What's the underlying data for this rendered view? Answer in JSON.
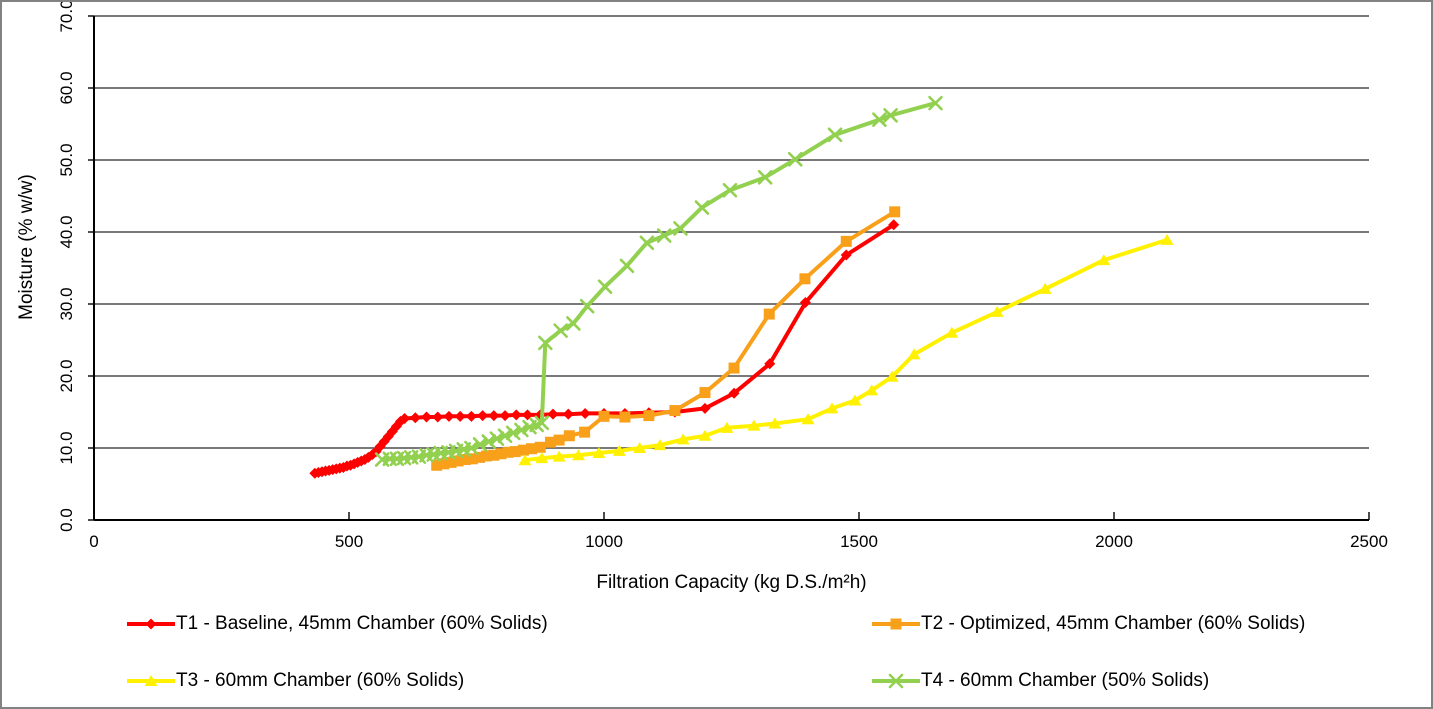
{
  "chart_data": {
    "type": "line",
    "title": "",
    "xlabel": "Filtration Capacity (kg D.S./m²h)",
    "ylabel": "Moisture (% w/w)",
    "xlim": [
      0,
      2500
    ],
    "ylim": [
      0,
      70
    ],
    "x_ticks": [
      "0",
      "500",
      "1000",
      "1500",
      "2000",
      "2500"
    ],
    "y_ticks": [
      "0.0",
      "10.0",
      "20.0",
      "30.0",
      "40.0",
      "50.0",
      "60.0",
      "70.0"
    ],
    "grid": "horizontal",
    "gridline_color": "#4d4d4d",
    "axis_color": "#000000",
    "text_color": "#000000",
    "legend_position": "bottom-two-columns",
    "series": [
      {
        "name": "T1 - Baseline, 45mm Chamber (60% Solids)",
        "color": "#FF0000",
        "marker": "diamond",
        "points": [
          [
            433,
            6.5
          ],
          [
            440,
            6.6
          ],
          [
            447,
            6.7
          ],
          [
            454,
            6.8
          ],
          [
            461,
            6.9
          ],
          [
            468,
            7.0
          ],
          [
            475,
            7.1
          ],
          [
            482,
            7.2
          ],
          [
            489,
            7.3
          ],
          [
            496,
            7.5
          ],
          [
            503,
            7.6
          ],
          [
            510,
            7.8
          ],
          [
            517,
            8.0
          ],
          [
            524,
            8.2
          ],
          [
            531,
            8.4
          ],
          [
            538,
            8.7
          ],
          [
            546,
            9.1
          ],
          [
            553,
            9.5
          ],
          [
            561,
            10.2
          ],
          [
            569,
            10.9
          ],
          [
            577,
            11.6
          ],
          [
            585,
            12.3
          ],
          [
            593,
            13.0
          ],
          [
            601,
            13.7
          ],
          [
            609,
            14.1
          ],
          [
            630,
            14.2
          ],
          [
            652,
            14.3
          ],
          [
            674,
            14.3
          ],
          [
            696,
            14.4
          ],
          [
            718,
            14.4
          ],
          [
            740,
            14.4
          ],
          [
            762,
            14.5
          ],
          [
            784,
            14.5
          ],
          [
            806,
            14.5
          ],
          [
            828,
            14.6
          ],
          [
            850,
            14.6
          ],
          [
            875,
            14.6
          ],
          [
            900,
            14.7
          ],
          [
            930,
            14.7
          ],
          [
            963,
            14.8
          ],
          [
            1000,
            14.8
          ],
          [
            1041,
            14.8
          ],
          [
            1088,
            14.9
          ],
          [
            1139,
            15.0
          ],
          [
            1198,
            15.5
          ],
          [
            1255,
            17.6
          ],
          [
            1325,
            21.7
          ],
          [
            1395,
            30.2
          ],
          [
            1475,
            36.8
          ],
          [
            1568,
            41.0
          ]
        ]
      },
      {
        "name": "T2 - Optimized, 45mm Chamber (60% Solids)",
        "color": "#F9A01B",
        "marker": "square",
        "points": [
          [
            672,
            7.6
          ],
          [
            686,
            7.8
          ],
          [
            700,
            8.0
          ],
          [
            714,
            8.2
          ],
          [
            728,
            8.4
          ],
          [
            742,
            8.5
          ],
          [
            756,
            8.7
          ],
          [
            770,
            8.9
          ],
          [
            784,
            9.0
          ],
          [
            798,
            9.2
          ],
          [
            812,
            9.4
          ],
          [
            826,
            9.5
          ],
          [
            842,
            9.7
          ],
          [
            858,
            9.9
          ],
          [
            875,
            10.1
          ],
          [
            895,
            10.8
          ],
          [
            912,
            11.1
          ],
          [
            932,
            11.7
          ],
          [
            962,
            12.2
          ],
          [
            1000,
            14.4
          ],
          [
            1041,
            14.3
          ],
          [
            1088,
            14.5
          ],
          [
            1139,
            15.2
          ],
          [
            1198,
            17.7
          ],
          [
            1255,
            21.1
          ],
          [
            1324,
            28.6
          ],
          [
            1394,
            33.5
          ],
          [
            1475,
            38.7
          ],
          [
            1570,
            42.8
          ]
        ]
      },
      {
        "name": "T3 - 60mm Chamber (60% Solids)",
        "color": "#FFF100",
        "marker": "triangle",
        "points": [
          [
            845,
            8.3
          ],
          [
            878,
            8.6
          ],
          [
            912,
            8.8
          ],
          [
            950,
            9.0
          ],
          [
            990,
            9.3
          ],
          [
            1030,
            9.6
          ],
          [
            1070,
            10.0
          ],
          [
            1110,
            10.4
          ],
          [
            1155,
            11.2
          ],
          [
            1198,
            11.7
          ],
          [
            1241,
            12.8
          ],
          [
            1294,
            13.1
          ],
          [
            1335,
            13.4
          ],
          [
            1400,
            14.0
          ],
          [
            1447,
            15.5
          ],
          [
            1492,
            16.6
          ],
          [
            1525,
            18.0
          ],
          [
            1565,
            19.9
          ],
          [
            1608,
            23.0
          ],
          [
            1682,
            26.0
          ],
          [
            1771,
            28.9
          ],
          [
            1865,
            32.1
          ],
          [
            1980,
            36.1
          ],
          [
            2104,
            38.9
          ]
        ]
      },
      {
        "name": "T4 - 60mm Chamber (50% Solids)",
        "color": "#92D050",
        "marker": "x",
        "points": [
          [
            565,
            8.4
          ],
          [
            580,
            8.5
          ],
          [
            594,
            8.5
          ],
          [
            608,
            8.6
          ],
          [
            622,
            8.7
          ],
          [
            637,
            8.8
          ],
          [
            652,
            9.0
          ],
          [
            666,
            9.1
          ],
          [
            680,
            9.3
          ],
          [
            695,
            9.4
          ],
          [
            710,
            9.6
          ],
          [
            725,
            9.8
          ],
          [
            740,
            10.0
          ],
          [
            757,
            10.5
          ],
          [
            774,
            10.9
          ],
          [
            790,
            11.3
          ],
          [
            806,
            11.7
          ],
          [
            822,
            12.1
          ],
          [
            838,
            12.5
          ],
          [
            854,
            12.9
          ],
          [
            868,
            13.2
          ],
          [
            878,
            13.5
          ],
          [
            885,
            24.6
          ],
          [
            915,
            26.3
          ],
          [
            940,
            27.3
          ],
          [
            967,
            29.7
          ],
          [
            1002,
            32.4
          ],
          [
            1045,
            35.3
          ],
          [
            1084,
            38.5
          ],
          [
            1118,
            39.5
          ],
          [
            1150,
            40.5
          ],
          [
            1192,
            43.4
          ],
          [
            1247,
            45.8
          ],
          [
            1316,
            47.6
          ],
          [
            1375,
            50.1
          ],
          [
            1453,
            53.5
          ],
          [
            1540,
            55.6
          ],
          [
            1562,
            56.2
          ],
          [
            1650,
            57.9
          ]
        ]
      }
    ]
  }
}
